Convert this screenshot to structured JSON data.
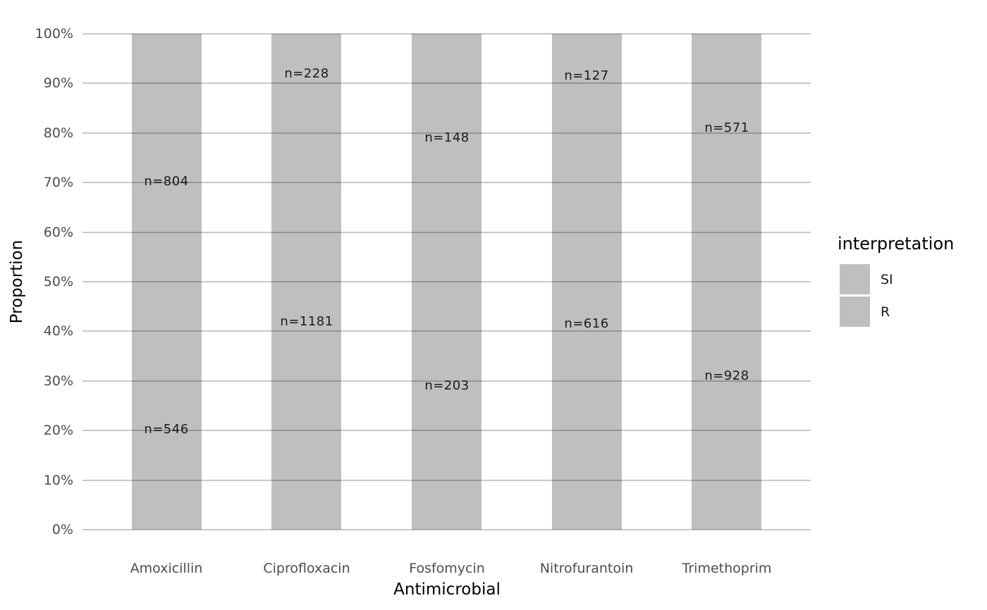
{
  "chart_data": {
    "type": "bar",
    "variant": "100-percent-stacked-vertical",
    "title": "",
    "xlabel": "Antimicrobial",
    "ylabel": "Proportion",
    "categories": [
      "Amoxicillin",
      "Ciprofloxacin",
      "Fosfomycin",
      "Nitrofurantoin",
      "Trimethoprim"
    ],
    "series": [
      {
        "name": "SI",
        "stack_position": "top",
        "counts": [
          804,
          228,
          148,
          127,
          571
        ],
        "labels": [
          "n=804",
          "n=228",
          "n=148",
          "n=127",
          "n=571"
        ]
      },
      {
        "name": "R",
        "stack_position": "bottom",
        "counts": [
          546,
          1181,
          203,
          616,
          928
        ],
        "labels": [
          "n=546",
          "n=1181",
          "n=203",
          "n=616",
          "n=928"
        ]
      }
    ],
    "y_ticks": [
      "0%",
      "10%",
      "20%",
      "30%",
      "40%",
      "50%",
      "60%",
      "70%",
      "80%",
      "90%",
      "100%"
    ],
    "ylim": [
      0,
      1
    ],
    "grid": "horizontal-major-only, drawn over bars",
    "legend": {
      "title": "interpretation",
      "position": "right",
      "entries": [
        "SI",
        "R"
      ]
    },
    "colors": {
      "bar_fill": "#bfbfbf",
      "legend_key_fill": "#bfbfbf",
      "grid_line": "rgba(0,0,0,0.21)",
      "tick_text": "#4d4d4d",
      "axis_title_text": "#000000",
      "bar_label_text": "#1a1a1a",
      "background": "#ffffff"
    }
  }
}
